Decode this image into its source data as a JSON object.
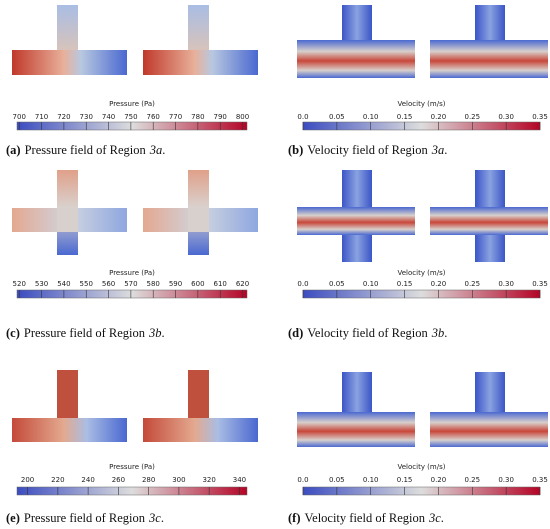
{
  "panels": [
    {
      "colorbar": {
        "title": "Pressure (Pa)",
        "lim": [
          699,
          802
        ],
        "ticks": [
          700,
          710,
          720,
          730,
          740,
          750,
          760,
          770,
          780,
          790,
          800
        ]
      },
      "caption": {
        "label": "(a)",
        "text": "Pressure field of Region",
        "region": "3a",
        "end": "."
      }
    },
    {
      "colorbar": {
        "title": "Velocity (m/s)",
        "lim": [
          0,
          0.35
        ],
        "ticks": [
          {
            "value": 0,
            "label": "0.0"
          },
          0.05,
          {
            "value": 0.1,
            "label": "0.10"
          },
          0.15,
          {
            "value": 0.2,
            "label": "0.20"
          },
          0.25,
          {
            "value": 0.3,
            "label": "0.30"
          },
          0.35
        ]
      },
      "caption": {
        "label": "(b)",
        "text": "Velocity field of Region",
        "region": "3a",
        "end": "."
      }
    },
    {
      "colorbar": {
        "title": "Pressure (Pa)",
        "lim": [
          519,
          622
        ],
        "ticks": [
          520,
          530,
          540,
          550,
          560,
          570,
          580,
          590,
          600,
          610,
          620
        ]
      },
      "caption": {
        "label": "(c)",
        "text": "Pressure field of Region",
        "region": "3b",
        "end": "."
      }
    },
    {
      "colorbar": {
        "title": "Velocity (m/s)",
        "lim": [
          0,
          0.35
        ],
        "ticks": [
          {
            "value": 0,
            "label": "0.0"
          },
          0.05,
          {
            "value": 0.1,
            "label": "0.10"
          },
          0.15,
          {
            "value": 0.2,
            "label": "0.20"
          },
          0.25,
          {
            "value": 0.3,
            "label": "0.30"
          },
          0.35
        ]
      },
      "caption": {
        "label": "(d)",
        "text": "Velocity field of Region",
        "region": "3b",
        "end": "."
      }
    },
    {
      "colorbar": {
        "title": "Pressure (Pa)",
        "lim": [
          193,
          345
        ],
        "ticks": [
          200,
          220,
          240,
          260,
          280,
          300,
          320,
          340
        ]
      },
      "caption": {
        "label": "(e)",
        "text": "Pressure field of Region",
        "region": "3c",
        "end": "."
      }
    },
    {
      "colorbar": {
        "title": "Velocity (m/s)",
        "lim": [
          0,
          0.35
        ],
        "ticks": [
          {
            "value": 0,
            "label": "0.0"
          },
          0.05,
          {
            "value": 0.1,
            "label": "0.10"
          },
          0.15,
          {
            "value": 0.2,
            "label": "0.20"
          },
          0.25,
          {
            "value": 0.3,
            "label": "0.30"
          },
          0.35
        ]
      },
      "caption": {
        "label": "(f)",
        "text": "Velocity field of Region",
        "region": "3c",
        "end": "."
      }
    }
  ]
}
